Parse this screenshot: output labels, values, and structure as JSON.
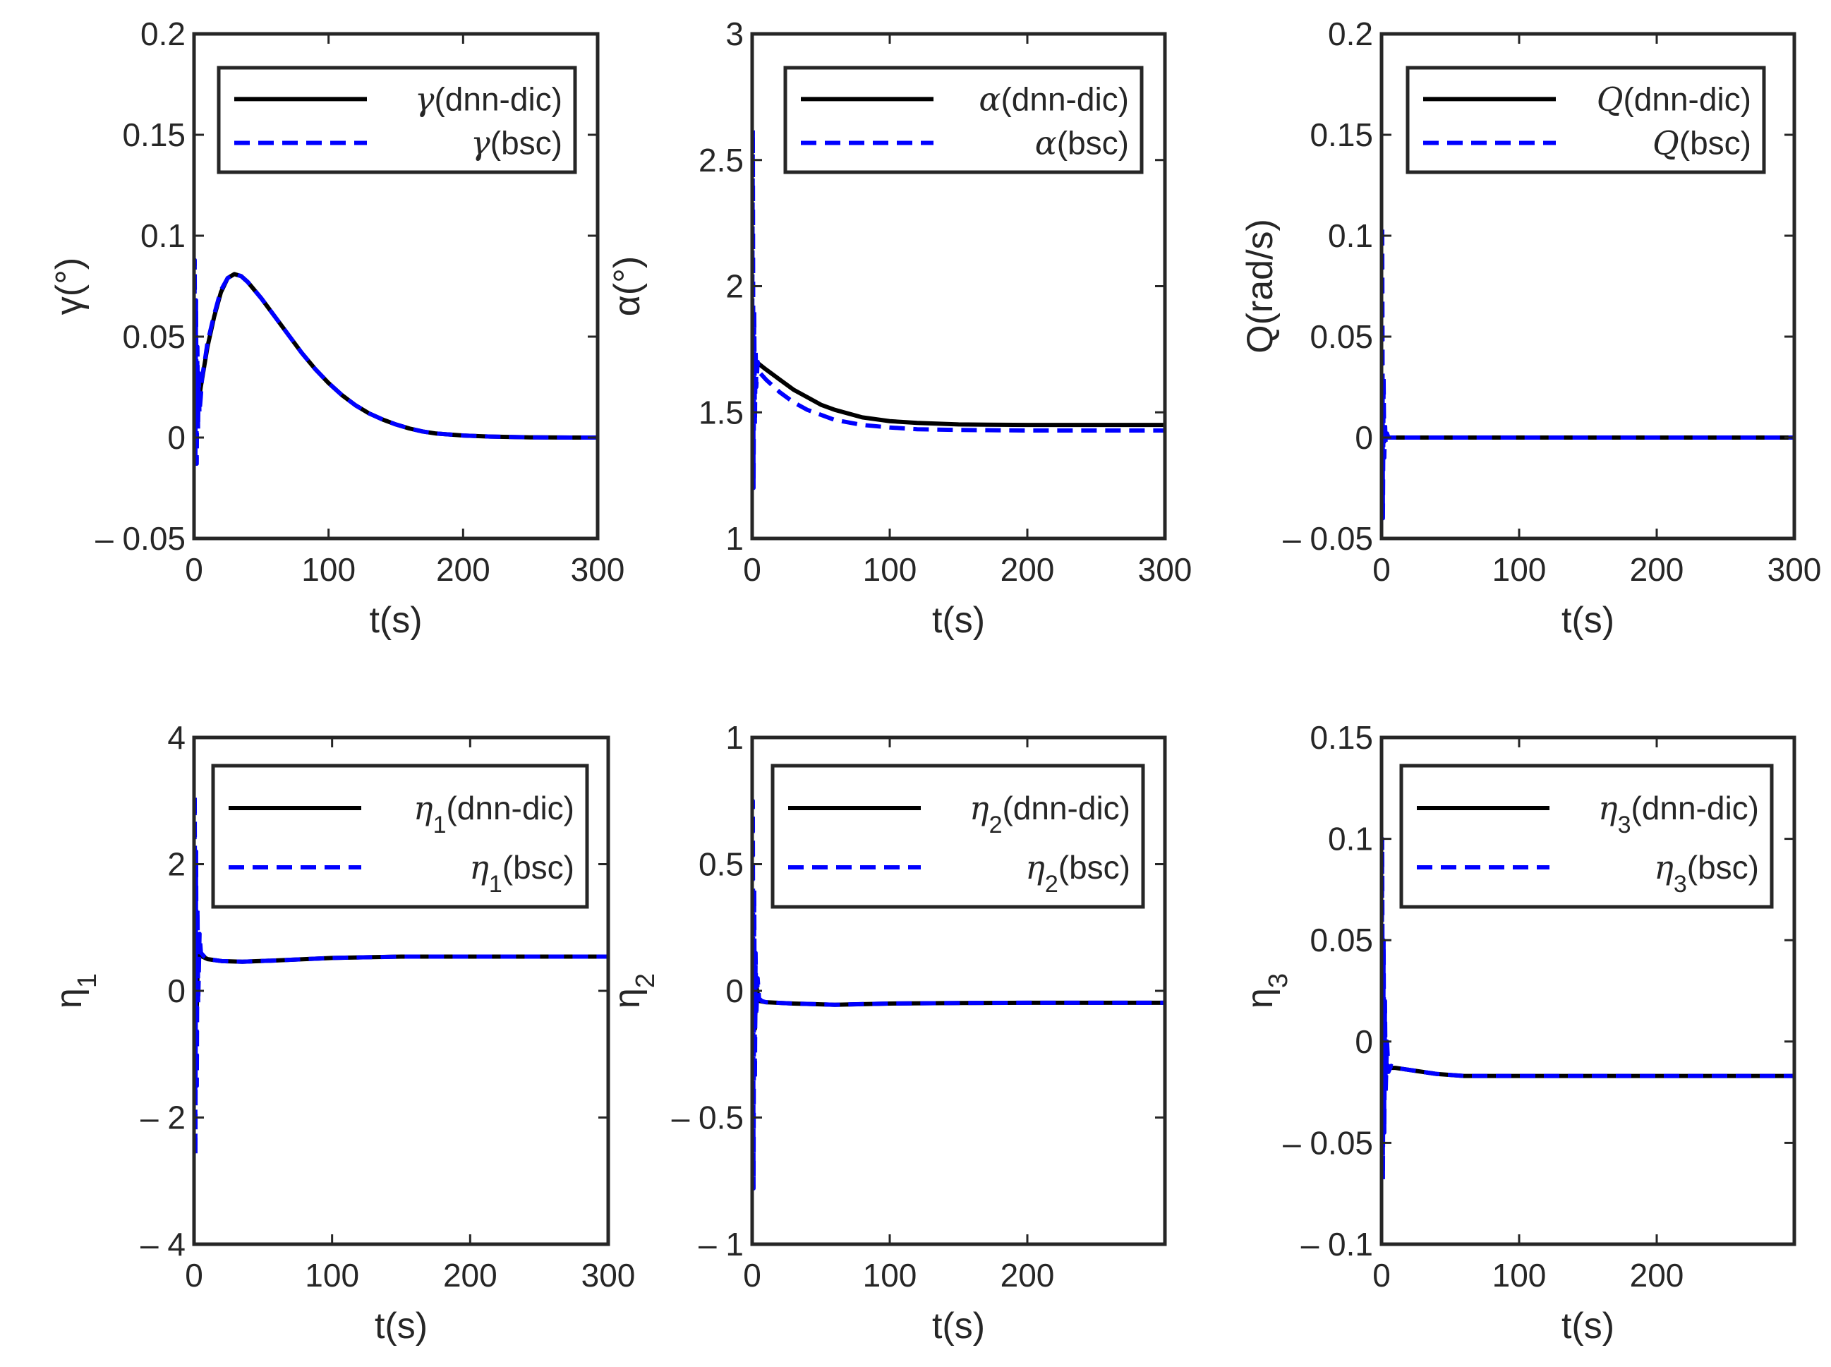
{
  "chart_data": [
    {
      "id": "gamma",
      "type": "line",
      "ylabel": "γ(°)",
      "ylabel_main": "γ",
      "ylabel_sub": "",
      "ylabel_rest": "(°)",
      "xlabel": "t(s)",
      "xlim": [
        0,
        300
      ],
      "ylim": [
        -0.05,
        0.2
      ],
      "xticks": [
        0,
        100,
        200,
        300
      ],
      "xtick_labels": [
        "0",
        "100",
        "200",
        "300"
      ],
      "yticks": [
        -0.05,
        0,
        0.05,
        0.1,
        0.15,
        0.2
      ],
      "ytick_labels": [
        "– 0.05",
        "0",
        "0.05",
        "0.1",
        "0.15",
        "0.2"
      ],
      "legend_position": "top-right",
      "series": [
        {
          "name": "γ(dnn-dic)",
          "sym": "γ",
          "sub": "",
          "tag": "(dnn-dic)",
          "color": "#000000",
          "style": "solid",
          "x": [
            0,
            2,
            5,
            10,
            15,
            20,
            25,
            30,
            35,
            40,
            50,
            60,
            70,
            80,
            90,
            100,
            110,
            120,
            130,
            140,
            150,
            160,
            170,
            180,
            200,
            220,
            250,
            280,
            300
          ],
          "y": [
            0,
            0.01,
            0.025,
            0.045,
            0.06,
            0.072,
            0.079,
            0.081,
            0.08,
            0.077,
            0.069,
            0.06,
            0.051,
            0.042,
            0.034,
            0.027,
            0.021,
            0.016,
            0.012,
            0.009,
            0.0065,
            0.0045,
            0.003,
            0.002,
            0.001,
            0.0005,
            0.0001,
            0,
            0
          ]
        },
        {
          "name": "γ(bsc)",
          "sym": "γ",
          "sub": "",
          "tag": "(bsc)",
          "color": "#0000ff",
          "style": "dashed",
          "x": [
            0,
            0.5,
            1,
            1.5,
            2,
            2.5,
            3,
            3.5,
            4,
            5,
            6,
            8,
            10,
            15,
            20,
            25,
            30,
            35,
            40,
            50,
            60,
            70,
            80,
            90,
            100,
            110,
            120,
            130,
            140,
            150,
            160,
            170,
            180,
            200,
            220,
            250,
            280,
            300
          ],
          "y": [
            0,
            0.088,
            -0.012,
            0.068,
            -0.013,
            0.045,
            0.004,
            0.032,
            0.012,
            0.02,
            0.03,
            0.038,
            0.047,
            0.061,
            0.073,
            0.079,
            0.081,
            0.08,
            0.077,
            0.069,
            0.06,
            0.051,
            0.042,
            0.034,
            0.027,
            0.021,
            0.016,
            0.012,
            0.009,
            0.0065,
            0.0045,
            0.003,
            0.002,
            0.001,
            0.0005,
            0.0001,
            0,
            0
          ]
        }
      ]
    },
    {
      "id": "alpha",
      "type": "line",
      "ylabel": "α(°)",
      "ylabel_main": "α",
      "ylabel_sub": "",
      "ylabel_rest": "(°)",
      "xlabel": "t(s)",
      "xlim": [
        0,
        300
      ],
      "ylim": [
        1,
        3
      ],
      "xticks": [
        0,
        100,
        200,
        300
      ],
      "xtick_labels": [
        "0",
        "100",
        "200",
        "300"
      ],
      "yticks": [
        1,
        1.5,
        2,
        2.5,
        3
      ],
      "ytick_labels": [
        "1",
        "1.5",
        "2",
        "2.5",
        "3"
      ],
      "legend_position": "top-right",
      "series": [
        {
          "name": "α(dnn-dic)",
          "sym": "α",
          "sub": "",
          "tag": "(dnn-dic)",
          "color": "#000000",
          "style": "solid",
          "x": [
            0,
            3,
            10,
            20,
            30,
            40,
            50,
            60,
            80,
            100,
            120,
            150,
            200,
            250,
            300
          ],
          "y": [
            1.7,
            1.7,
            1.67,
            1.63,
            1.59,
            1.56,
            1.53,
            1.51,
            1.48,
            1.465,
            1.458,
            1.452,
            1.45,
            1.45,
            1.45
          ]
        },
        {
          "name": "α(bsc)",
          "sym": "α",
          "sub": "",
          "tag": "(bsc)",
          "color": "#0000ff",
          "style": "dashed",
          "x": [
            0,
            0.5,
            1,
            1.5,
            2,
            2.5,
            3,
            4,
            5,
            10,
            20,
            30,
            40,
            50,
            60,
            80,
            100,
            120,
            150,
            200,
            250,
            300
          ],
          "y": [
            1.7,
            2.62,
            1.2,
            1.9,
            1.45,
            1.75,
            1.6,
            1.7,
            1.66,
            1.63,
            1.58,
            1.54,
            1.51,
            1.49,
            1.47,
            1.45,
            1.44,
            1.433,
            1.43,
            1.428,
            1.428,
            1.428
          ]
        }
      ]
    },
    {
      "id": "Q",
      "type": "line",
      "ylabel": "Q(rad/s)",
      "ylabel_main": "Q",
      "ylabel_sub": "",
      "ylabel_rest": "(rad/s)",
      "xlabel": "t(s)",
      "xlim": [
        0,
        300
      ],
      "ylim": [
        -0.05,
        0.2
      ],
      "xticks": [
        0,
        100,
        200,
        300
      ],
      "xtick_labels": [
        "0",
        "100",
        "200",
        "300"
      ],
      "yticks": [
        -0.05,
        0,
        0.05,
        0.1,
        0.15,
        0.2
      ],
      "ytick_labels": [
        "– 0.05",
        "0",
        "0.05",
        "0.1",
        "0.15",
        "0.2"
      ],
      "legend_position": "top-right",
      "series": [
        {
          "name": "Q(dnn-dic)",
          "sym": "Q",
          "sub": "",
          "tag": "(dnn-dic)",
          "color": "#000000",
          "style": "solid",
          "x": [
            0,
            1,
            2,
            3,
            5,
            10,
            300
          ],
          "y": [
            0,
            0.004,
            -0.002,
            0.001,
            0,
            0,
            0
          ]
        },
        {
          "name": "Q(bsc)",
          "sym": "Q",
          "sub": "",
          "tag": "(bsc)",
          "color": "#0000ff",
          "style": "dashed",
          "x": [
            0,
            0.5,
            1,
            1.5,
            2,
            2.5,
            3,
            4,
            5,
            8,
            300
          ],
          "y": [
            0,
            0.105,
            -0.04,
            0.03,
            -0.01,
            0.008,
            -0.003,
            0.002,
            0,
            0,
            0
          ]
        }
      ]
    },
    {
      "id": "eta1",
      "type": "line",
      "ylabel": "η1",
      "ylabel_main": "η",
      "ylabel_sub": "1",
      "ylabel_rest": "",
      "xlabel": "t(s)",
      "xlim": [
        0,
        300
      ],
      "ylim": [
        -4,
        4
      ],
      "xticks": [
        0,
        100,
        200,
        300
      ],
      "xtick_labels": [
        "0",
        "100",
        "200",
        "300"
      ],
      "yticks": [
        -4,
        -2,
        0,
        2,
        4
      ],
      "ytick_labels": [
        "– 4",
        "– 2",
        "0",
        "2",
        "4"
      ],
      "legend_position": "top-right",
      "series": [
        {
          "name": "η1(dnn-dic)",
          "sym": "η",
          "sub": "1",
          "tag": "(dnn-dic)",
          "color": "#000000",
          "style": "solid",
          "x": [
            0,
            1,
            2,
            3,
            5,
            10,
            20,
            35,
            60,
            100,
            150,
            200,
            250,
            300
          ],
          "y": [
            0.5,
            1.2,
            -0.3,
            0.8,
            0.55,
            0.5,
            0.47,
            0.46,
            0.48,
            0.52,
            0.54,
            0.54,
            0.54,
            0.54
          ]
        },
        {
          "name": "η1(bsc)",
          "sym": "η",
          "sub": "1",
          "tag": "(bsc)",
          "color": "#0000ff",
          "style": "dashed",
          "x": [
            0,
            0.5,
            1,
            1.5,
            2,
            2.5,
            3,
            4,
            5,
            7,
            10,
            20,
            35,
            60,
            100,
            150,
            200,
            250,
            300
          ],
          "y": [
            0.5,
            3.1,
            -2.6,
            2.2,
            -1.5,
            1.3,
            -0.2,
            0.9,
            0.6,
            0.55,
            0.5,
            0.47,
            0.46,
            0.48,
            0.52,
            0.54,
            0.54,
            0.54,
            0.54
          ]
        }
      ]
    },
    {
      "id": "eta2",
      "type": "line",
      "ylabel": "η2",
      "ylabel_main": "η",
      "ylabel_sub": "2",
      "ylabel_rest": "",
      "xlabel": "t(s)",
      "xlim": [
        0,
        300
      ],
      "ylim": [
        -1,
        1
      ],
      "xticks": [
        0,
        100,
        200
      ],
      "xtick_labels": [
        "0",
        "100",
        "200"
      ],
      "yticks": [
        -1,
        -0.5,
        0,
        0.5,
        1
      ],
      "ytick_labels": [
        "– 1",
        "– 0.5",
        "0",
        "0.5",
        "1"
      ],
      "legend_position": "top-right",
      "series": [
        {
          "name": "η2(dnn-dic)",
          "sym": "η",
          "sub": "2",
          "tag": "(dnn-dic)",
          "color": "#000000",
          "style": "solid",
          "x": [
            0,
            1,
            2,
            3,
            5,
            10,
            30,
            60,
            100,
            150,
            200,
            250,
            300
          ],
          "y": [
            -0.04,
            0.1,
            -0.15,
            0.02,
            -0.04,
            -0.045,
            -0.05,
            -0.055,
            -0.05,
            -0.048,
            -0.047,
            -0.047,
            -0.047
          ]
        },
        {
          "name": "η2(bsc)",
          "sym": "η",
          "sub": "2",
          "tag": "(bsc)",
          "color": "#0000ff",
          "style": "dashed",
          "x": [
            0,
            0.5,
            1,
            1.5,
            2,
            2.5,
            3,
            4,
            5,
            7,
            10,
            30,
            60,
            100,
            150,
            200,
            250,
            300
          ],
          "y": [
            -0.04,
            0.75,
            -0.78,
            0.4,
            -0.35,
            0.15,
            -0.1,
            0.05,
            -0.03,
            -0.04,
            -0.045,
            -0.05,
            -0.055,
            -0.05,
            -0.048,
            -0.047,
            -0.047,
            -0.047
          ]
        }
      ]
    },
    {
      "id": "eta3",
      "type": "line",
      "ylabel": "η3",
      "ylabel_main": "η",
      "ylabel_sub": "3",
      "ylabel_rest": "",
      "xlabel": "t(s)",
      "xlim": [
        0,
        300
      ],
      "ylim": [
        -0.1,
        0.15
      ],
      "xticks": [
        0,
        100,
        200
      ],
      "xtick_labels": [
        "0",
        "100",
        "200"
      ],
      "yticks": [
        -0.1,
        -0.05,
        0,
        0.05,
        0.1,
        0.15
      ],
      "ytick_labels": [
        "– 0.1",
        "– 0.05",
        "0",
        "0.05",
        "0.1",
        "0.15"
      ],
      "legend_position": "top-right",
      "series": [
        {
          "name": "η3(dnn-dic)",
          "sym": "η",
          "sub": "3",
          "tag": "(dnn-dic)",
          "color": "#000000",
          "style": "solid",
          "x": [
            0,
            1,
            2,
            3,
            5,
            10,
            20,
            40,
            60,
            100,
            150,
            200,
            250,
            300
          ],
          "y": [
            -0.012,
            0.005,
            -0.02,
            -0.01,
            -0.013,
            -0.013,
            -0.014,
            -0.016,
            -0.017,
            -0.017,
            -0.017,
            -0.017,
            -0.017,
            -0.017
          ]
        },
        {
          "name": "η3(bsc)",
          "sym": "η",
          "sub": "3",
          "tag": "(bsc)",
          "color": "#0000ff",
          "style": "dashed",
          "x": [
            0,
            0.5,
            1,
            1.5,
            2,
            2.5,
            3,
            4,
            5,
            7,
            10,
            20,
            40,
            60,
            100,
            150,
            200,
            250,
            300
          ],
          "y": [
            -0.012,
            0.1,
            -0.068,
            0.05,
            -0.045,
            0.02,
            -0.025,
            0.0,
            -0.015,
            -0.012,
            -0.013,
            -0.014,
            -0.016,
            -0.017,
            -0.017,
            -0.017,
            -0.017,
            -0.017,
            -0.017
          ]
        }
      ]
    }
  ]
}
